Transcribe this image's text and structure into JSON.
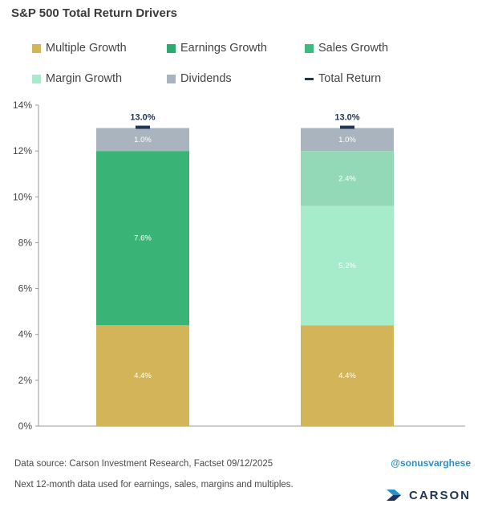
{
  "title": "S&P 500 Total Return Drivers",
  "legend": [
    {
      "label": "Multiple Growth",
      "color": "#d4b458",
      "style": "box"
    },
    {
      "label": "Earnings Growth",
      "color": "#2daa6e",
      "style": "box"
    },
    {
      "label": "Sales Growth",
      "color": "#3dbb7c",
      "style": "box"
    },
    {
      "label": "Margin Growth",
      "color": "#a6ecca",
      "style": "box"
    },
    {
      "label": "Dividends",
      "color": "#aab4bf",
      "style": "box"
    },
    {
      "label": "Total Return",
      "color": "#1f3557",
      "style": "dash"
    }
  ],
  "footer": {
    "source": "Data source: Carson Investment Research, Factset   09/12/2025",
    "note": "Next 12-month data used for earnings, sales, margins and multiples.",
    "handle": "@sonusvarghese",
    "brand": "CARSON"
  },
  "chart_data": {
    "type": "bar",
    "stacked": true,
    "ylim": [
      0,
      14
    ],
    "yticks": [
      "0%",
      "2%",
      "4%",
      "6%",
      "8%",
      "10%",
      "12%",
      "14%"
    ],
    "grid": false,
    "categories": [
      "",
      ""
    ],
    "bars": [
      {
        "segments": [
          {
            "series": "Multiple Growth",
            "value": 4.4,
            "label": "4.4%",
            "color": "#d4b458"
          },
          {
            "series": "Earnings Growth",
            "value": 7.6,
            "label": "7.6%",
            "color": "#39b476"
          },
          {
            "series": "Dividends",
            "value": 1.0,
            "label": "1.0%",
            "color": "#aab4bf"
          }
        ],
        "total": 13.0,
        "total_label": "13.0%"
      },
      {
        "segments": [
          {
            "series": "Multiple Growth",
            "value": 4.4,
            "label": "4.4%",
            "color": "#d4b458"
          },
          {
            "series": "Sales Growth",
            "value": 5.2,
            "label": "5.2%",
            "color": "#a6ecca"
          },
          {
            "series": "Margin Growth",
            "value": 2.4,
            "label": "2.4%",
            "color": "#93d9b7"
          },
          {
            "series": "Dividends",
            "value": 1.0,
            "label": "1.0%",
            "color": "#aab4bf"
          }
        ],
        "total": 13.0,
        "total_label": "13.0%"
      }
    ],
    "axis_color": "#999999",
    "total_marker_color": "#1f3557",
    "total_label_color": "#1f3557"
  }
}
